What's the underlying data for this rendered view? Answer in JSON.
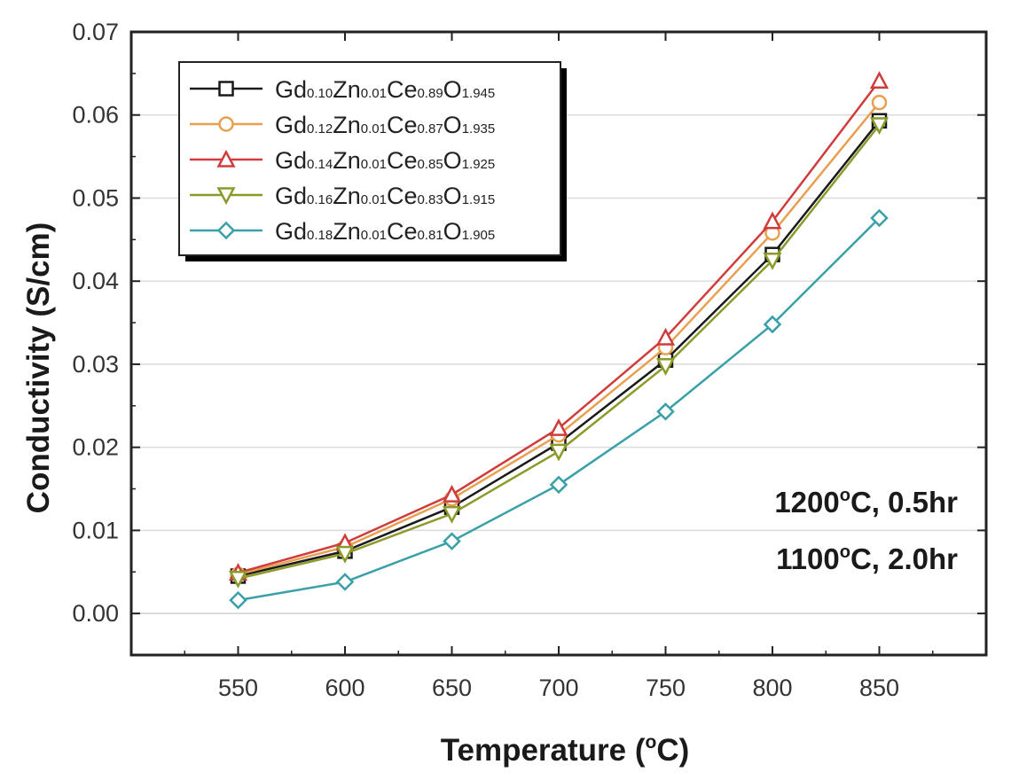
{
  "chart_data": {
    "type": "line",
    "title": "",
    "xlabel": "Temperature (°C)",
    "xlabel_parts": {
      "pre": "Temperature (",
      "sup": "o",
      "post": "C)"
    },
    "ylabel": "Conductivity (S/cm)",
    "xlim": [
      500,
      900
    ],
    "ylim": [
      -0.005,
      0.07
    ],
    "x_ticks": [
      550,
      600,
      650,
      700,
      750,
      800,
      850
    ],
    "y_ticks": [
      0.0,
      0.01,
      0.02,
      0.03,
      0.04,
      0.05,
      0.06,
      0.07
    ],
    "y_tick_labels": [
      "0.00",
      "0.01",
      "0.02",
      "0.03",
      "0.04",
      "0.05",
      "0.06",
      "0.07"
    ],
    "grid": true,
    "legend_position": "top-left",
    "x": [
      550,
      600,
      650,
      700,
      750,
      800,
      850
    ],
    "series": [
      {
        "name": "Gd0.10Zn0.01Ce0.89O1.945",
        "name_parts": [
          [
            "Gd",
            "0.10"
          ],
          [
            "Zn",
            "0.01"
          ],
          [
            "Ce",
            "0.89"
          ],
          [
            "O",
            "1.945"
          ]
        ],
        "color": "#1a1a1a",
        "marker": "square",
        "values": [
          0.0045,
          0.0075,
          0.0128,
          0.0205,
          0.0305,
          0.0432,
          0.0593
        ]
      },
      {
        "name": "Gd0.12Zn0.01Ce0.87O1.935",
        "name_parts": [
          [
            "Gd",
            "0.12"
          ],
          [
            "Zn",
            "0.01"
          ],
          [
            "Ce",
            "0.87"
          ],
          [
            "O",
            "1.935"
          ]
        ],
        "color": "#e8a050",
        "marker": "circle",
        "values": [
          0.0047,
          0.008,
          0.0138,
          0.0215,
          0.032,
          0.0458,
          0.0615
        ]
      },
      {
        "name": "Gd0.14Zn0.01Ce0.85O1.925",
        "name_parts": [
          [
            "Gd",
            "0.14"
          ],
          [
            "Zn",
            "0.01"
          ],
          [
            "Ce",
            "0.85"
          ],
          [
            "O",
            "1.925"
          ]
        ],
        "color": "#d03c3c",
        "marker": "triangle-up",
        "values": [
          0.0049,
          0.0085,
          0.0143,
          0.0223,
          0.0332,
          0.0472,
          0.0641
        ]
      },
      {
        "name": "Gd0.16Zn0.01Ce0.83O1.915",
        "name_parts": [
          [
            "Gd",
            "0.16"
          ],
          [
            "Zn",
            "0.01"
          ],
          [
            "Ce",
            "0.83"
          ],
          [
            "O",
            "1.915"
          ]
        ],
        "color": "#8c9a2a",
        "marker": "triangle-down",
        "values": [
          0.0042,
          0.0072,
          0.012,
          0.0195,
          0.0298,
          0.0425,
          0.0588
        ]
      },
      {
        "name": "Gd0.18Zn0.01Ce0.81O1.905",
        "name_parts": [
          [
            "Gd",
            "0.18"
          ],
          [
            "Zn",
            "0.01"
          ],
          [
            "Ce",
            "0.81"
          ],
          [
            "O",
            "1.905"
          ]
        ],
        "color": "#3aa0a8",
        "marker": "diamond",
        "values": [
          0.0016,
          0.0038,
          0.0087,
          0.0155,
          0.0243,
          0.0348,
          0.0476
        ]
      }
    ],
    "annotations": [
      {
        "pre": "1200",
        "sup": "o",
        "post": "C, 0.5hr"
      },
      {
        "pre": "1100",
        "sup": "o",
        "post": "C, 2.0hr"
      }
    ]
  }
}
